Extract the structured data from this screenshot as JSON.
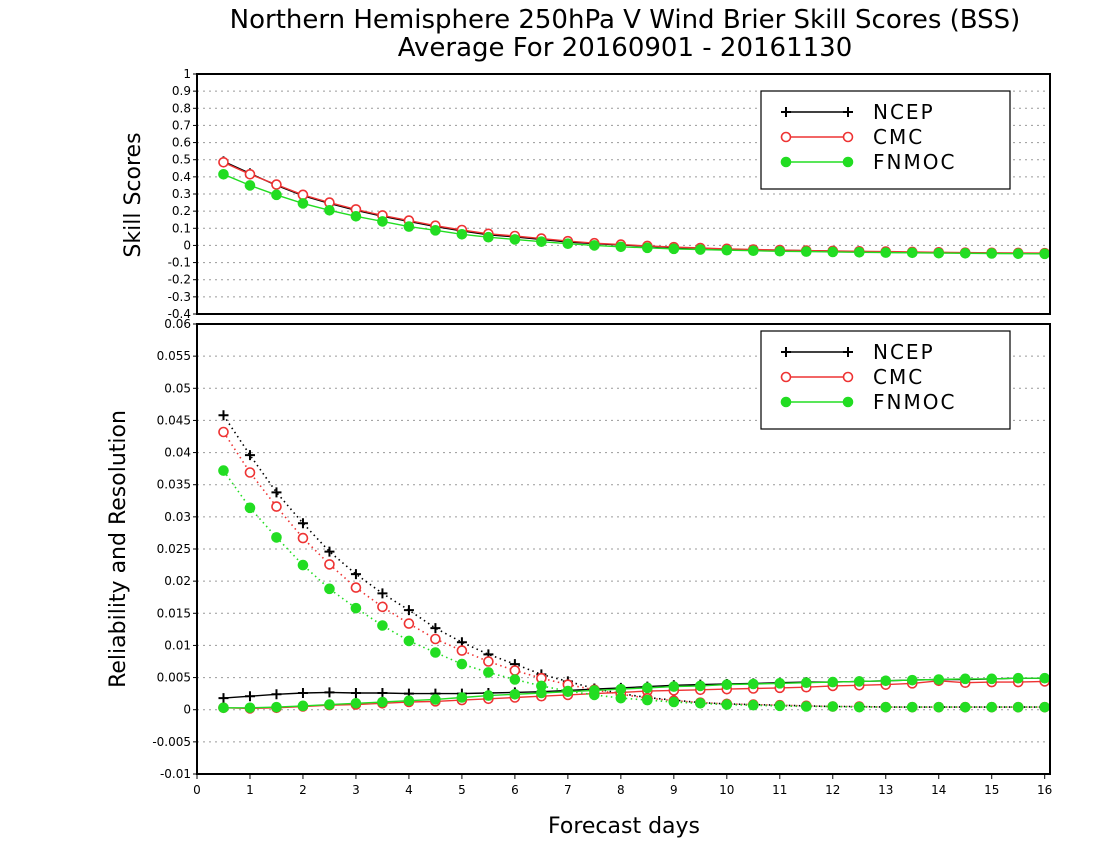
{
  "figure": {
    "title_line1": "Northern Hemisphere 250hPa V Wind Brier Skill Scores (BSS)",
    "title_line2": "Average For 20160901 - 20161130",
    "xlabel": "Forecast days"
  },
  "colors": {
    "NCEP": "#000000",
    "CMC": "#ee3333",
    "FNMOC": "#22dd22"
  },
  "chart_data": [
    {
      "type": "line",
      "ylabel": "Skill Scores",
      "xlim": [
        0,
        16.1
      ],
      "ylim": [
        -0.4,
        1
      ],
      "yticks": [
        "-0.4",
        "-0.3",
        "-0.2",
        "-0.1",
        "0",
        "0.1",
        "0.2",
        "0.3",
        "0.4",
        "0.5",
        "0.6",
        "0.7",
        "0.8",
        "0.9",
        "1"
      ],
      "legend": {
        "position": "top-right",
        "entries": [
          "NCEP",
          "CMC",
          "FNMOC"
        ]
      },
      "x": [
        0.5,
        1,
        1.5,
        2,
        2.5,
        3,
        3.5,
        4,
        4.5,
        5,
        5.5,
        6,
        6.5,
        7,
        7.5,
        8,
        8.5,
        9,
        9.5,
        10,
        10.5,
        11,
        11.5,
        12,
        12.5,
        13,
        13.5,
        14,
        14.5,
        15,
        15.5,
        16
      ],
      "series": [
        {
          "name": "NCEP",
          "marker": "plus",
          "values": [
            0.49,
            0.42,
            0.35,
            0.29,
            0.245,
            0.205,
            0.17,
            0.14,
            0.11,
            0.085,
            0.062,
            0.05,
            0.035,
            0.02,
            0.01,
            0.003,
            -0.005,
            -0.012,
            -0.017,
            -0.022,
            -0.026,
            -0.028,
            -0.031,
            -0.033,
            -0.036,
            -0.038,
            -0.04,
            -0.042,
            -0.043,
            -0.045,
            -0.046,
            -0.047
          ]
        },
        {
          "name": "CMC",
          "marker": "open-circle",
          "values": [
            0.485,
            0.415,
            0.355,
            0.295,
            0.25,
            0.21,
            0.175,
            0.145,
            0.115,
            0.09,
            0.068,
            0.055,
            0.04,
            0.025,
            0.013,
            0.005,
            -0.003,
            -0.01,
            -0.015,
            -0.02,
            -0.024,
            -0.027,
            -0.03,
            -0.032,
            -0.034,
            -0.036,
            -0.038,
            -0.04,
            -0.042,
            -0.043,
            -0.044,
            -0.045
          ]
        },
        {
          "name": "FNMOC",
          "marker": "filled-circle",
          "values": [
            0.415,
            0.35,
            0.295,
            0.245,
            0.205,
            0.17,
            0.14,
            0.11,
            0.088,
            0.065,
            0.048,
            0.035,
            0.022,
            0.01,
            0.0,
            -0.008,
            -0.014,
            -0.02,
            -0.024,
            -0.028,
            -0.031,
            -0.034,
            -0.036,
            -0.038,
            -0.04,
            -0.042,
            -0.043,
            -0.045,
            -0.046,
            -0.047,
            -0.048,
            -0.049
          ]
        }
      ]
    },
    {
      "type": "line",
      "ylabel": "Reliability and Resolution",
      "xlim": [
        0,
        16.1
      ],
      "ylim": [
        -0.01,
        0.06
      ],
      "yticks": [
        "-0.01",
        "-0.005",
        "0",
        "0.005",
        "0.01",
        "0.015",
        "0.02",
        "0.025",
        "0.03",
        "0.035",
        "0.04",
        "0.045",
        "0.05",
        "0.055",
        "0.06"
      ],
      "xticks": [
        "0",
        "1",
        "2",
        "3",
        "4",
        "5",
        "6",
        "7",
        "8",
        "9",
        "10",
        "11",
        "12",
        "13",
        "14",
        "15",
        "16"
      ],
      "legend": {
        "position": "top-right",
        "entries": [
          "NCEP",
          "CMC",
          "FNMOC"
        ]
      },
      "x": [
        0.5,
        1,
        1.5,
        2,
        2.5,
        3,
        3.5,
        4,
        4.5,
        5,
        5.5,
        6,
        6.5,
        7,
        7.5,
        8,
        8.5,
        9,
        9.5,
        10,
        10.5,
        11,
        11.5,
        12,
        12.5,
        13,
        13.5,
        14,
        14.5,
        15,
        15.5,
        16
      ],
      "series": [
        {
          "name": "NCEP",
          "style": "solid",
          "marker": "plus",
          "values": [
            0.0018,
            0.0021,
            0.0024,
            0.0026,
            0.0027,
            0.0026,
            0.0026,
            0.0025,
            0.0025,
            0.0025,
            0.0026,
            0.0027,
            0.0028,
            0.003,
            0.0032,
            0.0034,
            0.0036,
            0.0038,
            0.0039,
            0.004,
            0.0041,
            0.0042,
            0.0043,
            0.0043,
            0.0044,
            0.0045,
            0.0046,
            0.0047,
            0.0047,
            0.0048,
            0.0049,
            0.0049
          ]
        },
        {
          "name": "NCEP",
          "style": "dotted",
          "marker": "plus",
          "values": [
            0.0458,
            0.0396,
            0.0338,
            0.029,
            0.0246,
            0.0211,
            0.0181,
            0.0155,
            0.0127,
            0.0105,
            0.0086,
            0.0071,
            0.0055,
            0.0044,
            0.0033,
            0.0025,
            0.0019,
            0.0015,
            0.0011,
            0.0009,
            0.0008,
            0.0007,
            0.0006,
            0.0005,
            0.0005,
            0.0004,
            0.0004,
            0.0004,
            0.0004,
            0.0004,
            0.0004,
            0.0004
          ]
        },
        {
          "name": "CMC",
          "style": "solid",
          "marker": "open-circle",
          "values": [
            0.0003,
            0.0002,
            0.0003,
            0.0005,
            0.0007,
            0.0008,
            0.001,
            0.0012,
            0.0013,
            0.0015,
            0.0017,
            0.0019,
            0.0021,
            0.0023,
            0.0025,
            0.0027,
            0.0029,
            0.003,
            0.0031,
            0.0032,
            0.0033,
            0.0034,
            0.0035,
            0.0037,
            0.0038,
            0.0039,
            0.0041,
            0.0045,
            0.0042,
            0.0043,
            0.0043,
            0.0044
          ]
        },
        {
          "name": "CMC",
          "style": "dotted",
          "marker": "open-circle",
          "values": [
            0.0432,
            0.0369,
            0.0316,
            0.0267,
            0.0226,
            0.019,
            0.016,
            0.0134,
            0.011,
            0.0092,
            0.0075,
            0.0061,
            0.0049,
            0.0039,
            0.0031,
            0.0024,
            0.0018,
            0.0014,
            0.0011,
            0.0009,
            0.0008,
            0.0007,
            0.0006,
            0.0005,
            0.0005,
            0.0004,
            0.0004,
            0.0004,
            0.0004,
            0.0004,
            0.0004,
            0.0004
          ]
        },
        {
          "name": "FNMOC",
          "style": "solid",
          "marker": "filled-circle",
          "values": [
            0.0003,
            0.0003,
            0.0004,
            0.0006,
            0.0008,
            0.001,
            0.0012,
            0.0014,
            0.0016,
            0.0019,
            0.0022,
            0.0024,
            0.0026,
            0.0028,
            0.003,
            0.0032,
            0.0034,
            0.0036,
            0.0037,
            0.0039,
            0.004,
            0.0041,
            0.0042,
            0.0043,
            0.0044,
            0.0045,
            0.0046,
            0.0047,
            0.0048,
            0.0048,
            0.0049,
            0.0049
          ]
        },
        {
          "name": "FNMOC",
          "style": "dotted",
          "marker": "filled-circle",
          "values": [
            0.0372,
            0.0314,
            0.0268,
            0.0225,
            0.0188,
            0.0158,
            0.0131,
            0.0107,
            0.0089,
            0.0071,
            0.0058,
            0.0047,
            0.0037,
            0.0029,
            0.0023,
            0.0018,
            0.0015,
            0.0012,
            0.001,
            0.0008,
            0.0007,
            0.0006,
            0.0005,
            0.0005,
            0.0004,
            0.0004,
            0.0004,
            0.0004,
            0.0004,
            0.0004,
            0.0004,
            0.0004
          ]
        }
      ]
    }
  ]
}
